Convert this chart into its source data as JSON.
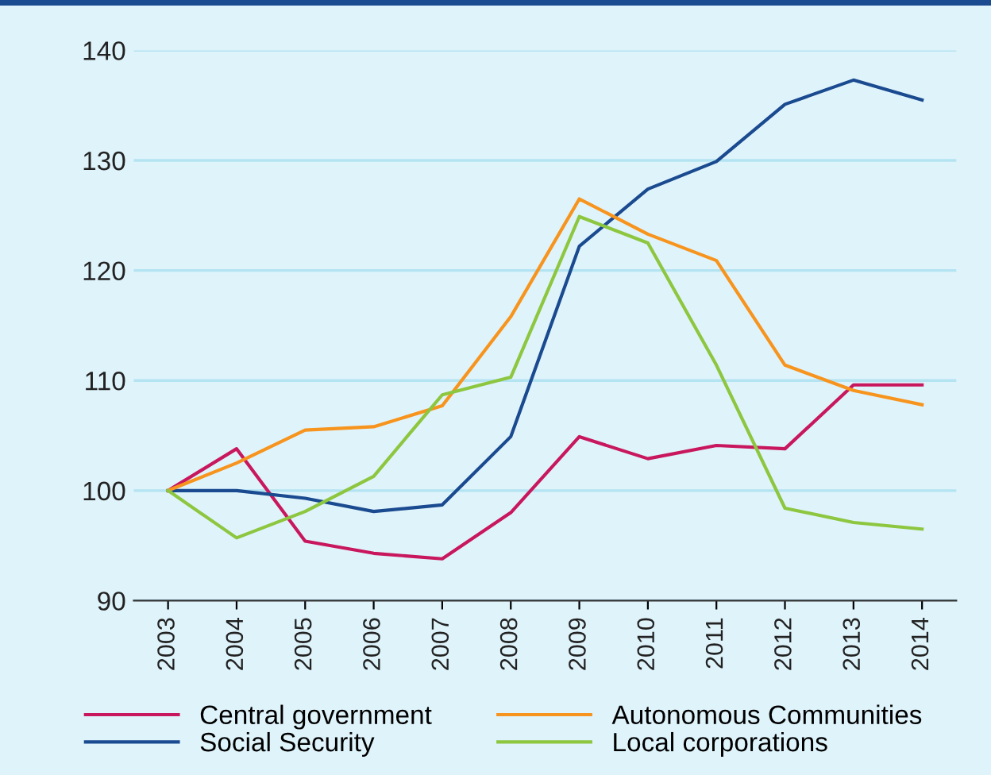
{
  "chart_data": {
    "type": "line",
    "categories": [
      "2003",
      "2004",
      "2005",
      "2006",
      "2007",
      "2008",
      "2009",
      "2010",
      "2011",
      "2012",
      "2013",
      "2014"
    ],
    "series": [
      {
        "name": "Central government",
        "color": "#c8175d",
        "values": [
          100,
          103.8,
          95.4,
          94.3,
          93.8,
          98,
          104.9,
          102.9,
          104.1,
          103.8,
          109.6,
          109.6
        ]
      },
      {
        "name": "Social Security",
        "color": "#1a4a8f",
        "values": [
          100,
          100,
          99.3,
          98.1,
          98.7,
          104.9,
          122.2,
          127.4,
          129.9,
          135.1,
          137.3,
          135.5
        ]
      },
      {
        "name": "Autonomous Communities",
        "color": "#f7941d",
        "values": [
          100,
          102.5,
          105.5,
          105.8,
          107.7,
          115.8,
          126.5,
          123.3,
          120.9,
          111.4,
          109.1,
          107.8
        ]
      },
      {
        "name": "Local corporations",
        "color": "#8dc63f",
        "values": [
          100,
          95.7,
          98.1,
          101.3,
          108.7,
          110.3,
          124.9,
          122.5,
          111.4,
          98.4,
          97.1,
          96.5
        ]
      }
    ],
    "ylim": [
      90,
      140
    ],
    "yticks": [
      90,
      100,
      110,
      120,
      130,
      140
    ],
    "grid": "y",
    "legend": "bottom",
    "marker": "none",
    "line_style": "solid"
  }
}
